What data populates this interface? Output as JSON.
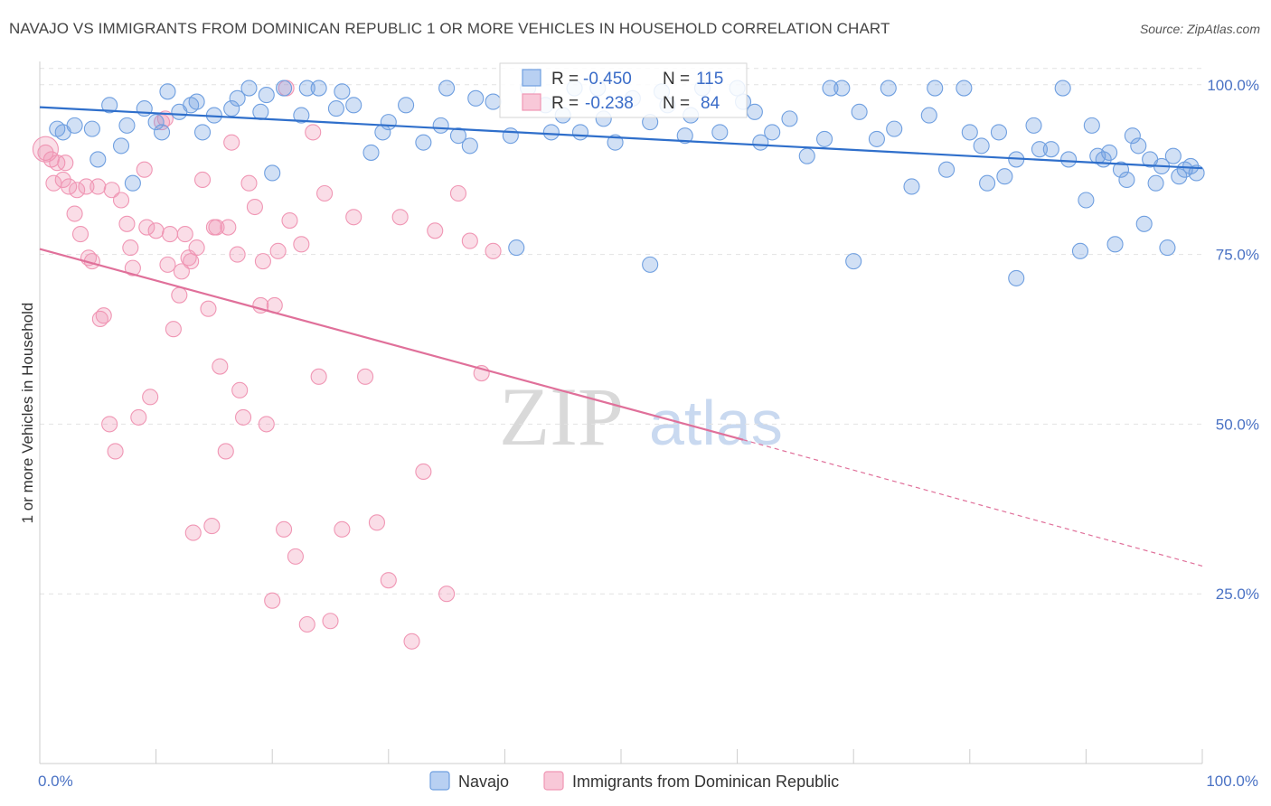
{
  "title": "NAVAJO VS IMMIGRANTS FROM DOMINICAN REPUBLIC 1 OR MORE VEHICLES IN HOUSEHOLD CORRELATION CHART",
  "source": "Source: ZipAtlas.com",
  "watermark": {
    "zip": "ZIP",
    "atlas": "atlas"
  },
  "legend_stats": {
    "navajo": {
      "r_label": "R =",
      "r_value": "-0.450",
      "n_label": "N =",
      "n_value": "115"
    },
    "dominican": {
      "r_label": "R =",
      "r_value": "-0.238",
      "n_label": "N =",
      "n_value": "84"
    }
  },
  "chart_data": {
    "type": "scatter",
    "title": "NAVAJO VS IMMIGRANTS FROM DOMINICAN REPUBLIC 1 OR MORE VEHICLES IN HOUSEHOLD CORRELATION CHART",
    "xlabel": "",
    "ylabel": "1 or more Vehicles in Household",
    "xlim": [
      0,
      100
    ],
    "ylim": [
      0,
      104.5
    ],
    "x_tick_labels": [
      "0.0%",
      "100.0%"
    ],
    "y_ticks": [
      25,
      50,
      75,
      100
    ],
    "y_tick_labels": [
      "25.0%",
      "50.0%",
      "75.0%",
      "100.0%"
    ],
    "colors": {
      "navajo": "#6f9fe0",
      "dominican": "#f096b4",
      "navajo_line": "#2f6fcb",
      "dominican_line": "#e0709a"
    },
    "series": [
      {
        "name": "Navajo",
        "trend": {
          "x0": 0,
          "y0": 96.7,
          "x1": 100,
          "y1": 87.7
        },
        "points": [
          [
            1.5,
            93.5
          ],
          [
            3.0,
            94.0
          ],
          [
            4.5,
            93.5
          ],
          [
            6.0,
            97.0
          ],
          [
            7.5,
            94.0
          ],
          [
            9.0,
            96.5
          ],
          [
            10.5,
            93.0
          ],
          [
            12.0,
            96.0
          ],
          [
            13.5,
            97.5
          ],
          [
            15.0,
            95.5
          ],
          [
            16.5,
            96.5
          ],
          [
            18.0,
            99.5
          ],
          [
            19.5,
            98.5
          ],
          [
            21.0,
            99.5
          ],
          [
            22.5,
            95.5
          ],
          [
            24.0,
            99.5
          ],
          [
            25.5,
            96.5
          ],
          [
            27.0,
            97.0
          ],
          [
            28.5,
            90.0
          ],
          [
            30.0,
            94.5
          ],
          [
            31.5,
            97.0
          ],
          [
            33.0,
            91.5
          ],
          [
            34.5,
            94.0
          ],
          [
            36.0,
            92.5
          ],
          [
            37.5,
            98.0
          ],
          [
            39.0,
            97.5
          ],
          [
            40.5,
            92.5
          ],
          [
            42.0,
            99.5
          ],
          [
            43.5,
            97.0
          ],
          [
            45.0,
            95.5
          ],
          [
            46.5,
            93.0
          ],
          [
            48.0,
            99.5
          ],
          [
            49.5,
            91.5
          ],
          [
            51.0,
            98.0
          ],
          [
            52.5,
            94.5
          ],
          [
            54.0,
            97.0
          ],
          [
            55.5,
            92.5
          ],
          [
            57.0,
            99.5
          ],
          [
            58.5,
            93.0
          ],
          [
            60.0,
            99.5
          ],
          [
            61.5,
            96.0
          ],
          [
            63.0,
            93.0
          ],
          [
            64.5,
            95.0
          ],
          [
            66.0,
            89.5
          ],
          [
            67.5,
            92.0
          ],
          [
            69.0,
            99.5
          ],
          [
            70.5,
            96.0
          ],
          [
            72.0,
            92.0
          ],
          [
            73.5,
            93.5
          ],
          [
            75.0,
            85.0
          ],
          [
            76.5,
            95.5
          ],
          [
            78.0,
            87.5
          ],
          [
            79.5,
            99.5
          ],
          [
            81.0,
            91.0
          ],
          [
            82.5,
            93.0
          ],
          [
            84.0,
            89.0
          ],
          [
            85.5,
            94.0
          ],
          [
            87.0,
            90.5
          ],
          [
            88.5,
            89.0
          ],
          [
            90.0,
            83.0
          ],
          [
            91.5,
            89.0
          ],
          [
            93.0,
            87.5
          ],
          [
            94.5,
            91.0
          ],
          [
            96.0,
            85.5
          ],
          [
            97.5,
            89.5
          ],
          [
            98.5,
            87.5
          ],
          [
            99.0,
            88.0
          ],
          [
            99.5,
            87.0
          ],
          [
            97.0,
            76.0
          ],
          [
            95.0,
            79.5
          ],
          [
            92.5,
            76.5
          ],
          [
            89.5,
            75.5
          ],
          [
            84.0,
            71.5
          ],
          [
            70.0,
            74.0
          ],
          [
            52.5,
            73.5
          ],
          [
            41.0,
            76.0
          ],
          [
            8.0,
            85.5
          ],
          [
            11.0,
            99.0
          ],
          [
            20.0,
            87.0
          ],
          [
            2.0,
            93.0
          ],
          [
            7.0,
            91.0
          ],
          [
            13.0,
            97.0
          ],
          [
            17.0,
            98.0
          ],
          [
            23.0,
            99.5
          ],
          [
            26.0,
            99.0
          ],
          [
            35.0,
            99.5
          ],
          [
            46.0,
            99.5
          ],
          [
            56.0,
            95.5
          ],
          [
            62.0,
            91.5
          ],
          [
            68.0,
            99.5
          ],
          [
            73.0,
            99.5
          ],
          [
            77.0,
            99.5
          ],
          [
            80.0,
            93.0
          ],
          [
            83.0,
            86.5
          ],
          [
            86.0,
            90.5
          ],
          [
            88.0,
            99.5
          ],
          [
            90.5,
            94.0
          ],
          [
            91.0,
            89.5
          ],
          [
            93.5,
            86.0
          ],
          [
            94.0,
            92.5
          ],
          [
            95.5,
            89.0
          ],
          [
            96.5,
            88.0
          ],
          [
            98.0,
            86.5
          ],
          [
            92.0,
            90.0
          ],
          [
            81.5,
            85.5
          ],
          [
            5.0,
            89.0
          ],
          [
            10.0,
            94.5
          ],
          [
            14.0,
            93.0
          ],
          [
            19.0,
            96.0
          ],
          [
            29.5,
            93.0
          ],
          [
            37.0,
            91.0
          ],
          [
            44.0,
            93.0
          ],
          [
            48.5,
            95.0
          ],
          [
            53.5,
            99.0
          ],
          [
            60.5,
            97.5
          ]
        ]
      },
      {
        "name": "Immigrants from Dominican Republic",
        "trend": {
          "x0": 0,
          "y0": 75.8,
          "x1": 60.5,
          "y1": 47.7,
          "dash_x1": 100,
          "dash_y1": 29.1
        },
        "points": [
          [
            0.5,
            90.0
          ],
          [
            1.0,
            89.0
          ],
          [
            1.5,
            88.5
          ],
          [
            2.0,
            86.0
          ],
          [
            2.5,
            85.0
          ],
          [
            3.0,
            81.0
          ],
          [
            3.5,
            78.0
          ],
          [
            4.0,
            85.0
          ],
          [
            4.5,
            74.0
          ],
          [
            5.0,
            85.0
          ],
          [
            5.5,
            66.0
          ],
          [
            6.0,
            50.0
          ],
          [
            6.5,
            46.0
          ],
          [
            7.0,
            83.0
          ],
          [
            7.5,
            79.5
          ],
          [
            8.0,
            73.0
          ],
          [
            8.5,
            51.0
          ],
          [
            9.0,
            87.5
          ],
          [
            9.5,
            54.0
          ],
          [
            10.0,
            78.5
          ],
          [
            10.5,
            94.5
          ],
          [
            11.0,
            73.5
          ],
          [
            11.5,
            64.0
          ],
          [
            12.0,
            69.0
          ],
          [
            12.5,
            78.0
          ],
          [
            13.0,
            74.0
          ],
          [
            13.5,
            76.0
          ],
          [
            14.0,
            86.0
          ],
          [
            14.5,
            67.0
          ],
          [
            15.0,
            79.0
          ],
          [
            15.5,
            58.5
          ],
          [
            16.0,
            46.0
          ],
          [
            16.5,
            91.5
          ],
          [
            17.0,
            75.0
          ],
          [
            17.5,
            51.0
          ],
          [
            18.0,
            85.5
          ],
          [
            18.5,
            82.0
          ],
          [
            19.0,
            67.5
          ],
          [
            19.5,
            50.0
          ],
          [
            20.0,
            24.0
          ],
          [
            20.5,
            75.5
          ],
          [
            21.0,
            34.5
          ],
          [
            21.5,
            80.0
          ],
          [
            22.0,
            30.5
          ],
          [
            22.5,
            76.5
          ],
          [
            23.0,
            20.5
          ],
          [
            23.5,
            93.0
          ],
          [
            24.0,
            57.0
          ],
          [
            24.5,
            84.0
          ],
          [
            25.0,
            21.0
          ],
          [
            26.0,
            34.5
          ],
          [
            27.0,
            80.5
          ],
          [
            28.0,
            57.0
          ],
          [
            29.0,
            35.5
          ],
          [
            30.0,
            27.0
          ],
          [
            31.0,
            80.5
          ],
          [
            32.0,
            18.0
          ],
          [
            33.0,
            43.0
          ],
          [
            34.0,
            78.5
          ],
          [
            35.0,
            25.0
          ],
          [
            36.0,
            84.0
          ],
          [
            37.0,
            77.0
          ],
          [
            38.0,
            57.5
          ],
          [
            39.0,
            75.5
          ],
          [
            2.2,
            88.5
          ],
          [
            3.2,
            84.5
          ],
          [
            4.2,
            74.5
          ],
          [
            5.2,
            65.5
          ],
          [
            6.2,
            84.5
          ],
          [
            9.2,
            79.0
          ],
          [
            11.2,
            78.0
          ],
          [
            12.2,
            72.5
          ],
          [
            13.2,
            34.0
          ],
          [
            15.2,
            79.0
          ],
          [
            16.2,
            79.0
          ],
          [
            17.2,
            55.0
          ],
          [
            19.2,
            74.0
          ],
          [
            20.2,
            67.5
          ],
          [
            21.2,
            99.5
          ],
          [
            14.8,
            35.0
          ],
          [
            1.2,
            85.5
          ],
          [
            7.8,
            76.0
          ],
          [
            10.8,
            95.0
          ],
          [
            12.8,
            74.5
          ]
        ]
      }
    ]
  },
  "legend": [
    {
      "label": "Navajo",
      "color": "#6f9fe0"
    },
    {
      "label": "Immigrants from Dominican Republic",
      "color": "#f096b4"
    }
  ]
}
